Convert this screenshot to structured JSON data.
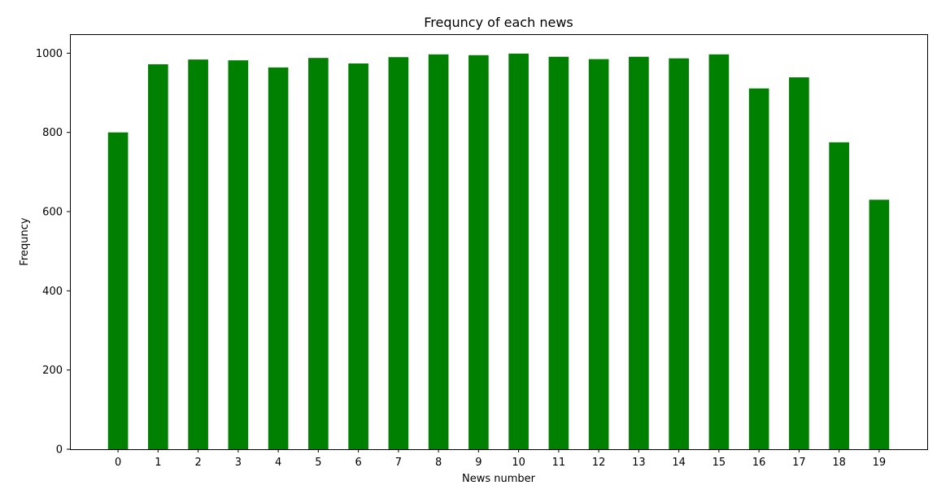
{
  "chart_data": {
    "type": "bar",
    "title": "Frequncy of each news",
    "xlabel": "News number",
    "ylabel": "Frequncy",
    "categories": [
      "0",
      "1",
      "2",
      "3",
      "4",
      "5",
      "6",
      "7",
      "8",
      "9",
      "10",
      "11",
      "12",
      "13",
      "14",
      "15",
      "16",
      "17",
      "18",
      "19"
    ],
    "values": [
      800,
      972,
      984,
      982,
      964,
      988,
      974,
      990,
      997,
      995,
      999,
      991,
      985,
      991,
      987,
      997,
      911,
      939,
      775,
      630
    ],
    "ylim": [
      0,
      1048
    ],
    "yticks": [
      0,
      200,
      400,
      600,
      800,
      1000
    ],
    "grid": false,
    "bar_color": "#008000"
  }
}
